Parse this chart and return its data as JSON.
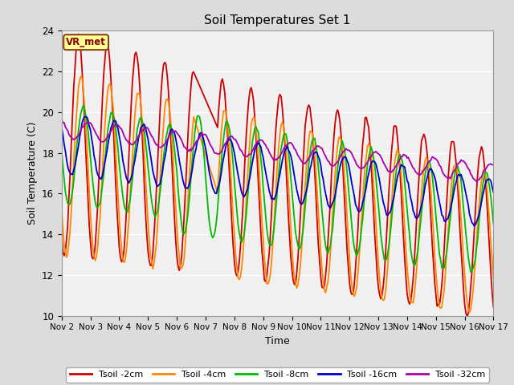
{
  "title": "Soil Temperatures Set 1",
  "xlabel": "Time",
  "ylabel": "Soil Temperature (C)",
  "ylim": [
    10,
    24
  ],
  "xlim": [
    0,
    360
  ],
  "annotation": "VR_met",
  "legend_labels": [
    "Tsoil -2cm",
    "Tsoil -4cm",
    "Tsoil -8cm",
    "Tsoil -16cm",
    "Tsoil -32cm"
  ],
  "colors": [
    "#cc0000",
    "#ff8800",
    "#00bb00",
    "#0000cc",
    "#aa00aa"
  ],
  "background_color": "#dcdcdc",
  "plot_bg_color": "#f0f0f0",
  "xtick_labels": [
    "Nov 2",
    "Nov 3",
    "Nov 4",
    "Nov 5",
    "Nov 6",
    "Nov 7",
    "Nov 8",
    "Nov 9",
    "Nov 10",
    "Nov 11",
    "Nov 12",
    "Nov 13",
    "Nov 14",
    "Nov 15",
    "Nov 16",
    "Nov 17"
  ],
  "xtick_positions": [
    0,
    24,
    48,
    72,
    96,
    120,
    144,
    168,
    192,
    216,
    240,
    264,
    288,
    312,
    336,
    360
  ],
  "yticks": [
    10,
    12,
    14,
    16,
    18,
    20,
    22,
    24
  ]
}
